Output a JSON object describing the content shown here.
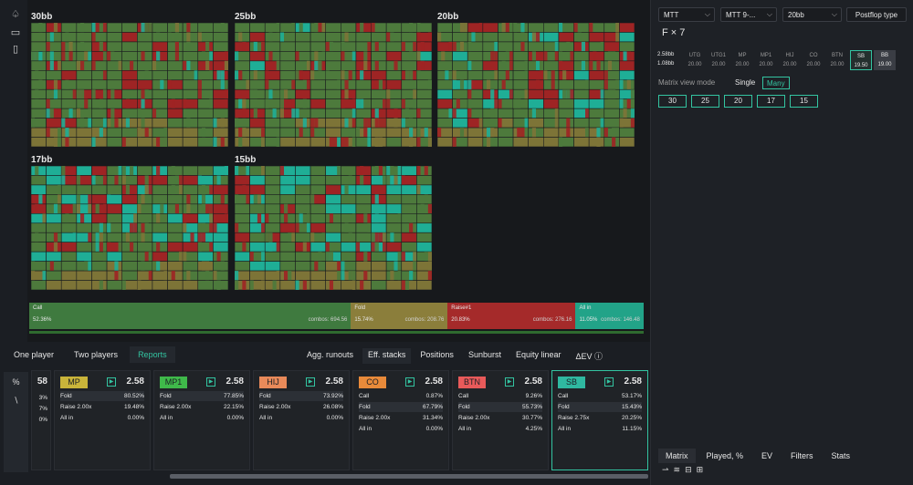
{
  "matrix_titles": [
    "30bb",
    "25bb",
    "20bb",
    "17bb",
    "15bb"
  ],
  "summary": [
    {
      "label": "Call",
      "pct": "52.36%",
      "combos": "combos: 694.56",
      "color": "#3f7a3f"
    },
    {
      "label": "Fold",
      "pct": "15.74%",
      "combos": "combos: 208.76",
      "color": "#8b7e3b"
    },
    {
      "label": "Raise#1",
      "pct": "20.83%",
      "combos": "combos: 276.16",
      "color": "#a52a2a"
    },
    {
      "label": "All in",
      "pct": "11.05%",
      "combos": "combos: 146.48",
      "color": "#22a388"
    }
  ],
  "summary_fractions": [
    0.5236,
    0.1574,
    0.2083,
    0.1105
  ],
  "right": {
    "dd1": "MTT",
    "dd2": "MTT 9-...",
    "dd3": "20bb",
    "postflop": "Postflop type",
    "formula": "F × 7",
    "stack_hdr": [
      "2.58bb",
      "1.08bb"
    ],
    "positions": [
      {
        "name": "UTG",
        "val": "20.00"
      },
      {
        "name": "UTG1",
        "val": "20.00"
      },
      {
        "name": "MP",
        "val": "20.00"
      },
      {
        "name": "MP1",
        "val": "20.00"
      },
      {
        "name": "HIJ",
        "val": "20.00"
      },
      {
        "name": "CO",
        "val": "20.00"
      },
      {
        "name": "BTN",
        "val": "20.00"
      },
      {
        "name": "SB",
        "val": "19.50"
      },
      {
        "name": "BB",
        "val": "19.00"
      }
    ],
    "mvm_label": "Matrix view mode",
    "single": "Single",
    "many": "Many",
    "stacks": [
      "30",
      "25",
      "20",
      "17",
      "15"
    ],
    "tabs": [
      "Matrix",
      "Played, %",
      "EV",
      "Filters",
      "Stats"
    ]
  },
  "bottom": {
    "tabs": [
      "One player",
      "Two players",
      "Reports"
    ],
    "rtabs": [
      "Agg. runouts",
      "Eff. stacks",
      "Positions",
      "Sunburst",
      "Equity linear",
      "ΔEV ⓘ"
    ],
    "sidebar": [
      "%",
      "∖"
    ],
    "partial": {
      "val": "58",
      "rows": [
        "3%",
        "7%",
        "0%"
      ]
    },
    "cards": [
      {
        "pos": "MP",
        "color": "#c9b43a",
        "val": "2.58",
        "rows": [
          [
            "Fold",
            "80.52%"
          ],
          [
            "Raise 2.00x",
            "19.48%"
          ],
          [
            "All in",
            "0.00%"
          ]
        ],
        "hl": 0
      },
      {
        "pos": "MP1",
        "color": "#3fb94a",
        "val": "2.58",
        "rows": [
          [
            "Fold",
            "77.85%"
          ],
          [
            "Raise 2.00x",
            "22.15%"
          ],
          [
            "All in",
            "0.00%"
          ]
        ],
        "hl": 0
      },
      {
        "pos": "HIJ",
        "color": "#e98a5a",
        "val": "2.58",
        "rows": [
          [
            "Fold",
            "73.92%"
          ],
          [
            "Raise 2.00x",
            "26.08%"
          ],
          [
            "All in",
            "0.00%"
          ]
        ],
        "hl": 0
      },
      {
        "pos": "CO",
        "color": "#e88a3a",
        "val": "2.58",
        "rows": [
          [
            "Call",
            "0.87%"
          ],
          [
            "Fold",
            "67.79%"
          ],
          [
            "Raise 2.00x",
            "31.34%"
          ],
          [
            "All in",
            "0.00%"
          ]
        ],
        "hl": 1
      },
      {
        "pos": "BTN",
        "color": "#e85a5a",
        "val": "2.58",
        "rows": [
          [
            "Call",
            "9.26%"
          ],
          [
            "Fold",
            "55.73%"
          ],
          [
            "Raise 2.00x",
            "30.77%"
          ],
          [
            "All in",
            "4.25%"
          ]
        ],
        "hl": 1
      },
      {
        "pos": "SB",
        "color": "#2fb8a0",
        "val": "2.58",
        "rows": [
          [
            "Call",
            "53.17%"
          ],
          [
            "Fold",
            "15.43%"
          ],
          [
            "Raise 2.75x",
            "20.25%"
          ],
          [
            "All in",
            "11.15%"
          ]
        ],
        "hl": 1
      }
    ]
  }
}
